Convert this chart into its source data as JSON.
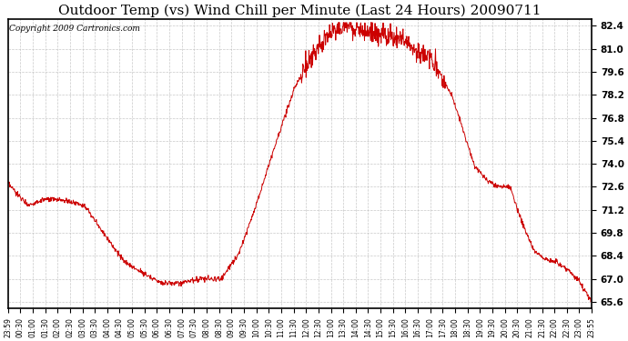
{
  "title": "Outdoor Temp (vs) Wind Chill per Minute (Last 24 Hours) 20090711",
  "copyright": "Copyright 2009 Cartronics.com",
  "yticks": [
    65.6,
    67.0,
    68.4,
    69.8,
    71.2,
    72.6,
    74.0,
    75.4,
    76.8,
    78.2,
    79.6,
    81.0,
    82.4
  ],
  "ylim": [
    65.2,
    82.8
  ],
  "xtick_labels": [
    "23:59",
    "00:30",
    "01:00",
    "01:30",
    "02:00",
    "02:30",
    "03:00",
    "03:30",
    "04:00",
    "04:30",
    "05:00",
    "05:30",
    "06:00",
    "06:30",
    "07:00",
    "07:30",
    "08:00",
    "08:30",
    "09:00",
    "09:30",
    "10:00",
    "10:30",
    "11:00",
    "11:30",
    "12:00",
    "12:30",
    "13:00",
    "13:30",
    "14:00",
    "14:30",
    "15:00",
    "15:30",
    "16:00",
    "16:30",
    "17:00",
    "17:30",
    "18:00",
    "18:30",
    "19:00",
    "19:30",
    "20:00",
    "20:30",
    "21:00",
    "21:30",
    "22:00",
    "22:30",
    "23:00",
    "23:55"
  ],
  "line_color": "#cc0000",
  "background_color": "#ffffff",
  "grid_color": "#bbbbbb",
  "title_fontsize": 11,
  "copyright_fontsize": 6.5
}
